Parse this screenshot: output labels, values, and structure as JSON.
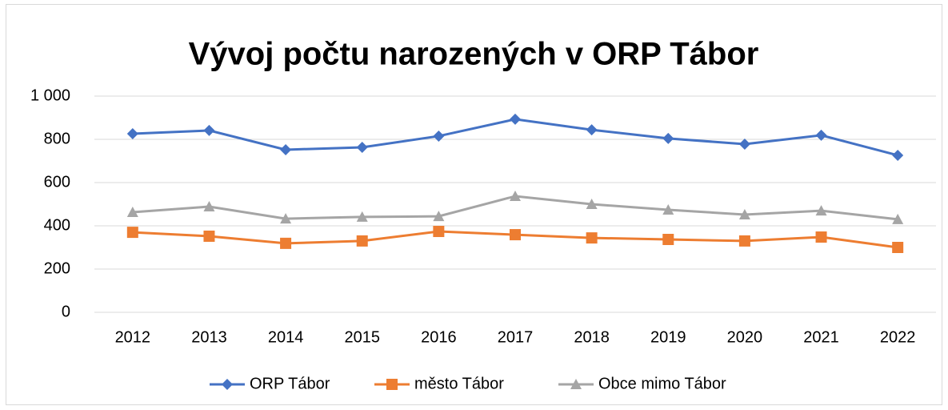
{
  "chart_data": {
    "type": "line",
    "title": "Vývoj počtu narozených v ORP Tábor",
    "categories": [
      "2012",
      "2013",
      "2014",
      "2015",
      "2016",
      "2017",
      "2018",
      "2019",
      "2020",
      "2021",
      "2022"
    ],
    "series": [
      {
        "name": "ORP Tábor",
        "color": "#4472c4",
        "marker": "diamond",
        "values": [
          826,
          841,
          752,
          763,
          815,
          893,
          844,
          804,
          778,
          819,
          726
        ]
      },
      {
        "name": "město Tábor",
        "color": "#ed7d31",
        "marker": "square",
        "values": [
          370,
          352,
          319,
          330,
          374,
          359,
          344,
          337,
          330,
          348,
          300
        ]
      },
      {
        "name": "Obce mimo Tábor",
        "color": "#a5a5a5",
        "marker": "triangle",
        "values": [
          463,
          489,
          433,
          441,
          444,
          537,
          500,
          474,
          452,
          470,
          430
        ]
      }
    ],
    "ylim": [
      0,
      1000
    ],
    "yticks": [
      0,
      200,
      400,
      600,
      800,
      {
        "value": 1000,
        "label": "1 000"
      }
    ],
    "grid": true,
    "legend": "bottom"
  }
}
